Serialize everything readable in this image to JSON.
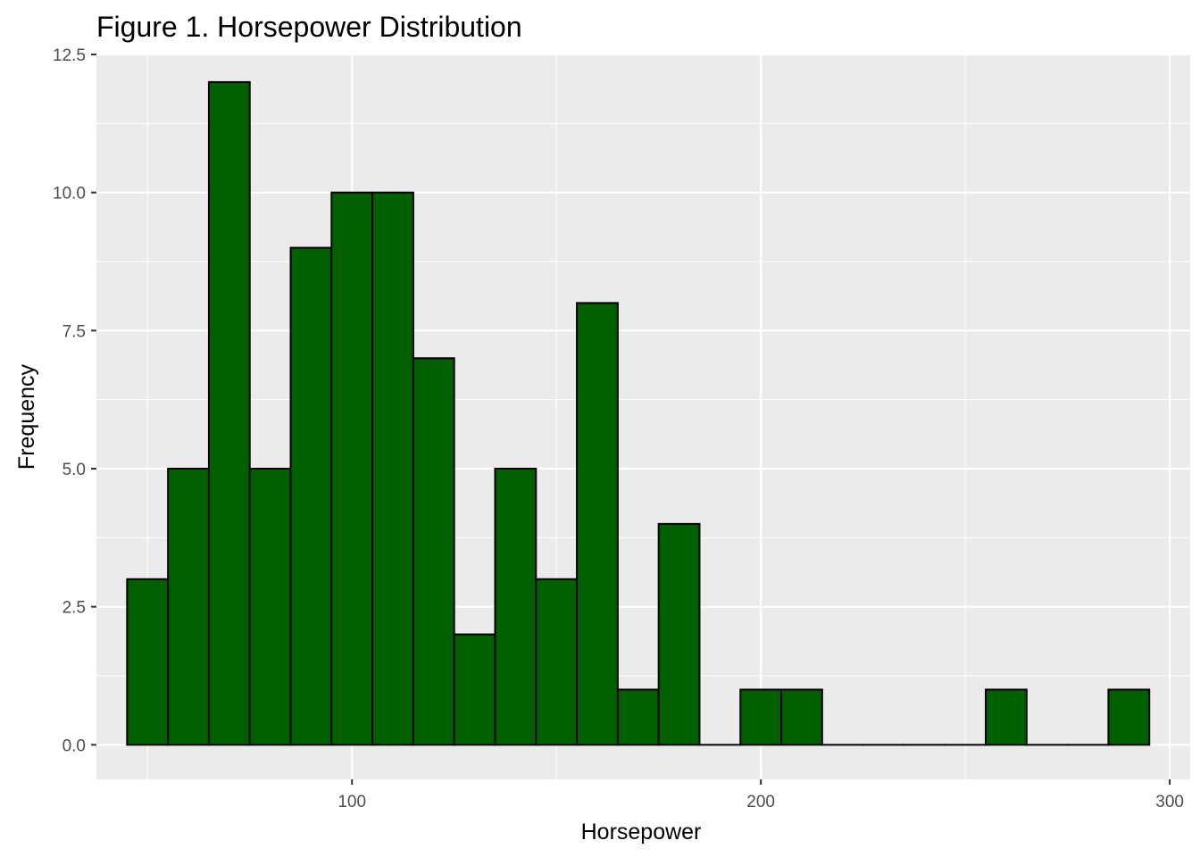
{
  "chart_data": {
    "type": "bar",
    "title": "Figure 1. Horsepower Distribution",
    "xlabel": "Horsepower",
    "ylabel": "Frequency",
    "xlim": [
      37.5,
      305
    ],
    "ylim": [
      -0.625,
      12.5
    ],
    "x_ticks": [
      100,
      200,
      300
    ],
    "x_tick_labels": [
      "100",
      "200",
      "300"
    ],
    "y_ticks": [
      0,
      2.5,
      5,
      7.5,
      10,
      12.5
    ],
    "y_tick_labels": [
      "0.0",
      "2.5",
      "5.0",
      "7.5",
      "10.0",
      "12.5"
    ],
    "bin_width": 10,
    "bins": [
      {
        "x0": 45,
        "x1": 55,
        "count": 3
      },
      {
        "x0": 55,
        "x1": 65,
        "count": 5
      },
      {
        "x0": 65,
        "x1": 75,
        "count": 12
      },
      {
        "x0": 75,
        "x1": 85,
        "count": 5
      },
      {
        "x0": 85,
        "x1": 95,
        "count": 9
      },
      {
        "x0": 95,
        "x1": 105,
        "count": 10
      },
      {
        "x0": 105,
        "x1": 115,
        "count": 10
      },
      {
        "x0": 115,
        "x1": 125,
        "count": 7
      },
      {
        "x0": 125,
        "x1": 135,
        "count": 2
      },
      {
        "x0": 135,
        "x1": 145,
        "count": 5
      },
      {
        "x0": 145,
        "x1": 155,
        "count": 3
      },
      {
        "x0": 155,
        "x1": 165,
        "count": 8
      },
      {
        "x0": 165,
        "x1": 175,
        "count": 1
      },
      {
        "x0": 175,
        "x1": 185,
        "count": 4
      },
      {
        "x0": 185,
        "x1": 195,
        "count": 0
      },
      {
        "x0": 195,
        "x1": 205,
        "count": 1
      },
      {
        "x0": 205,
        "x1": 215,
        "count": 1
      },
      {
        "x0": 215,
        "x1": 225,
        "count": 0
      },
      {
        "x0": 225,
        "x1": 235,
        "count": 0
      },
      {
        "x0": 235,
        "x1": 245,
        "count": 0
      },
      {
        "x0": 245,
        "x1": 255,
        "count": 0
      },
      {
        "x0": 255,
        "x1": 265,
        "count": 1
      },
      {
        "x0": 265,
        "x1": 275,
        "count": 0
      },
      {
        "x0": 275,
        "x1": 285,
        "count": 0
      },
      {
        "x0": 285,
        "x1": 295,
        "count": 1
      }
    ],
    "grid": true,
    "legend": "none",
    "colors": {
      "bar_fill": "#006000",
      "bar_outline": "#000000",
      "panel_background": "#EBEBEB",
      "grid": "#FFFFFF",
      "tick_label": "#4D4D4D"
    }
  }
}
